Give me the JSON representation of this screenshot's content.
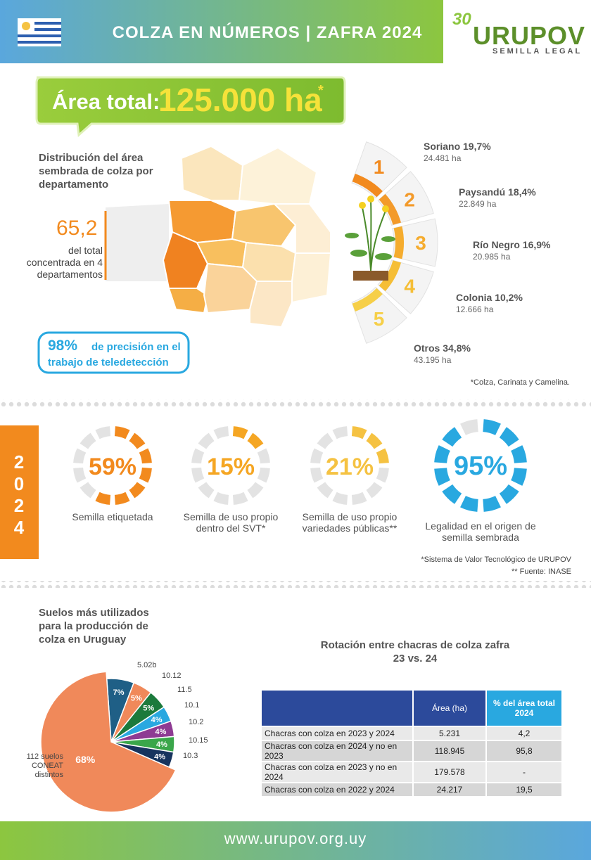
{
  "header": {
    "title": "COLZA EN NÚMEROS | ZAFRA 2024",
    "logo_number": "30",
    "logo_name": "URUPOV",
    "logo_tagline": "SEMILLA LEGAL"
  },
  "area": {
    "label": "Área total:",
    "value": "125.000 ha",
    "asterisk": "*",
    "map_title": "Distribución del área sembrada de colza por departamento",
    "concentration_value": "65,2",
    "concentration_text": "del total concentrada en 4 departamentos",
    "precision_value": "98%",
    "precision_text": "de precisión en el trabajo de teledetección",
    "footnote": "*Colza, Carinata y Camelina."
  },
  "ranking": [
    {
      "rank": "1",
      "name": "Soriano 19,7%",
      "ha": "24.481 ha",
      "color": "#f28a1e"
    },
    {
      "rank": "2",
      "name": "Paysandú 18,4%",
      "ha": "22.849 ha",
      "color": "#f39a2a"
    },
    {
      "rank": "3",
      "name": "Río Negro 16,9%",
      "ha": "20.985 ha",
      "color": "#f5ac2e"
    },
    {
      "rank": "4",
      "name": "Colonia 10,2%",
      "ha": "12.666 ha",
      "color": "#f5be36"
    },
    {
      "rank": "5",
      "name": "Otros 34,8%",
      "ha": "43.195 ha",
      "color": "#f6cf48"
    }
  ],
  "seed": {
    "year": "2024",
    "items": [
      {
        "value": 59,
        "label": "59%",
        "text": "Semilla etiquetada",
        "color": "#f28a1e"
      },
      {
        "value": 15,
        "label": "15%",
        "text": "Semilla de uso propio dentro del SVT*",
        "color": "#f5a623"
      },
      {
        "value": 21,
        "label": "21%",
        "text": "Semilla de uso propio variedades públicas**",
        "color": "#f5c242"
      },
      {
        "value": 95,
        "label": "95%",
        "text": "Legalidad en el origen de semilla sembrada",
        "color": "#29a8e0"
      }
    ],
    "notes": [
      "*Sistema de Valor Tecnológico de URUPOV",
      "** Fuente: INASE"
    ]
  },
  "soils": {
    "type": "pie",
    "title": "Suelos más utilizados para la producción de colza en Uruguay",
    "categories": [
      "5.02b",
      "10.12",
      "11.5",
      "10.1",
      "10.2",
      "10.15",
      "10.3",
      "112 suelos CONEAT distintos"
    ],
    "values": [
      7,
      5,
      5,
      4,
      4,
      4,
      4,
      68
    ],
    "value_labels": [
      "7%",
      "5%",
      "5%",
      "4%",
      "4%",
      "4%",
      "4%",
      "68%"
    ],
    "colors": [
      "#1f5f86",
      "#f0895a",
      "#1c7a3c",
      "#29a8e0",
      "#8e3b93",
      "#3aa64a",
      "#17345e",
      "#f0895a"
    ]
  },
  "rotation": {
    "title": "Rotación entre chacras de colza zafra 23 vs. 24",
    "columns": [
      "Área (ha)",
      "% del área total 2024"
    ],
    "rows": [
      [
        "Chacras con colza en 2023 y 2024",
        "5.231",
        "4,2"
      ],
      [
        "Chacras con colza en 2024 y no en 2023",
        "118.945",
        "95,8"
      ],
      [
        "Chacras con colza en 2023 y no en 2024",
        "179.578",
        "-"
      ],
      [
        "Chacras con colza en 2022 y 2024",
        "24.217",
        "19,5"
      ]
    ]
  },
  "footer": {
    "url": "www.urupov.org.uy"
  }
}
